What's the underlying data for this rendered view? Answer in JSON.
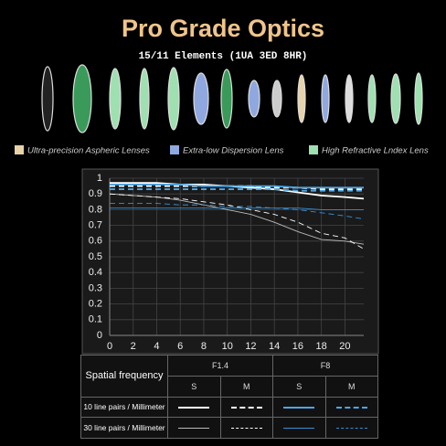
{
  "header": {
    "title": "Pro Grade Optics",
    "subtitle": "15/11 Elements (1UA 3ED 8HR)"
  },
  "lens_legend": [
    {
      "label": "Ultra-precision Aspheric Lenses",
      "color": "#e8d2a8"
    },
    {
      "label": "Extra-low Dispersion Lens",
      "color": "#8fa8e0"
    },
    {
      "label": "High Refractive Lndex Lens",
      "color": "#9fe0b0"
    }
  ],
  "chart_data": {
    "type": "line",
    "x": [
      0,
      2,
      4,
      6,
      8,
      10,
      12,
      14,
      16,
      18,
      20,
      21.6
    ],
    "xlim": [
      0,
      21.6
    ],
    "xticks": [
      0,
      2,
      4,
      6,
      8,
      10,
      12,
      14,
      16,
      18,
      20
    ],
    "ylim": [
      0,
      1
    ],
    "yticks": [
      0,
      0.1,
      0.2,
      0.3,
      0.4,
      0.5,
      0.6,
      0.7,
      0.8,
      0.9,
      1
    ],
    "grid": true,
    "series": [
      {
        "color": "#ffffff",
        "dashed": false,
        "thick": true,
        "values": [
          0.97,
          0.97,
          0.97,
          0.96,
          0.96,
          0.95,
          0.94,
          0.93,
          0.91,
          0.89,
          0.88,
          0.87
        ]
      },
      {
        "color": "#ffffff",
        "dashed": true,
        "thick": true,
        "values": [
          0.95,
          0.95,
          0.95,
          0.95,
          0.95,
          0.95,
          0.95,
          0.94,
          0.94,
          0.93,
          0.93,
          0.93
        ]
      },
      {
        "color": "#4aa8e8",
        "dashed": false,
        "thick": true,
        "values": [
          0.96,
          0.96,
          0.96,
          0.96,
          0.95,
          0.95,
          0.95,
          0.95,
          0.94,
          0.94,
          0.94,
          0.94
        ]
      },
      {
        "color": "#4aa8e8",
        "dashed": true,
        "thick": true,
        "values": [
          0.93,
          0.93,
          0.93,
          0.93,
          0.93,
          0.93,
          0.93,
          0.93,
          0.92,
          0.92,
          0.92,
          0.92
        ]
      },
      {
        "color": "#bbbbbb",
        "dashed": false,
        "thick": false,
        "values": [
          0.9,
          0.89,
          0.88,
          0.86,
          0.83,
          0.8,
          0.77,
          0.72,
          0.66,
          0.61,
          0.6,
          0.58
        ]
      },
      {
        "color": "#ffffff",
        "dashed": true,
        "thick": false,
        "values": [
          0.9,
          0.89,
          0.88,
          0.87,
          0.85,
          0.83,
          0.8,
          0.77,
          0.72,
          0.65,
          0.62,
          0.55
        ]
      },
      {
        "color": "#3a8ed0",
        "dashed": false,
        "thick": false,
        "values": [
          0.81,
          0.81,
          0.81,
          0.81,
          0.81,
          0.81,
          0.81,
          0.81,
          0.81,
          0.8,
          0.8,
          0.8
        ]
      },
      {
        "color": "#3a8ed0",
        "dashed": true,
        "thick": false,
        "values": [
          0.84,
          0.84,
          0.84,
          0.83,
          0.83,
          0.82,
          0.82,
          0.81,
          0.8,
          0.78,
          0.76,
          0.74
        ]
      }
    ]
  },
  "table": {
    "header": "Spatial frequency",
    "apertures": [
      "F1.4",
      "F8"
    ],
    "types": [
      "S",
      "M",
      "S",
      "M"
    ],
    "rows": [
      "10 line pairs / Millimeter",
      "30 line pairs / Millimeter"
    ]
  }
}
